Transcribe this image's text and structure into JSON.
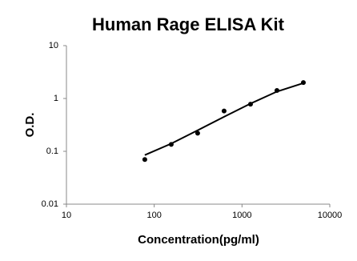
{
  "chart_data": {
    "type": "scatter",
    "title": "Human Rage ELISA Kit",
    "x_label": "Concentration(pg/ml)",
    "y_label": "O.D.",
    "xscale": "log",
    "yscale": "log",
    "xlim": [
      10,
      10000
    ],
    "ylim": [
      0.01,
      10
    ],
    "xticks": [
      10,
      100,
      1000,
      10000
    ],
    "yticks": [
      0.01,
      0.1,
      1,
      10
    ],
    "x": [
      78.125,
      156.25,
      312.5,
      625,
      1250,
      2500,
      5000
    ],
    "values": [
      0.07,
      0.135,
      0.22,
      0.58,
      0.78,
      1.42,
      2.0
    ],
    "color": "#000000",
    "fit": {
      "x": [
        78.125,
        156.25,
        312.5,
        625,
        1250,
        2500,
        5000
      ],
      "values": [
        0.085,
        0.14,
        0.25,
        0.45,
        0.8,
        1.35,
        1.95
      ],
      "color": "#000000"
    }
  }
}
